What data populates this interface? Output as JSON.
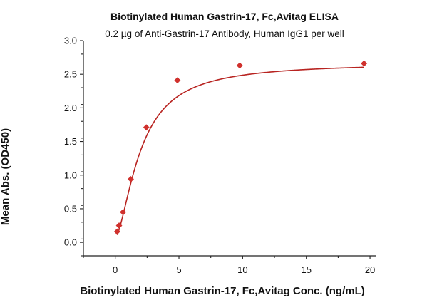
{
  "chart_data": {
    "type": "scatter",
    "title": "Biotinylated Human Gastrin-17, Fc,Avitag ELISA",
    "subtitle": "0.2 µg of Anti-Gastrin-17 Antibody, Human IgG1 per well",
    "xlabel": "Biotinylated Human Gastrin-17, Fc,Avitag Conc. (ng/mL)",
    "ylabel": "Mean Abs. (OD450)",
    "xlim": [
      -2.5,
      20.5
    ],
    "ylim": [
      -0.2,
      3.0
    ],
    "x_ticks": [
      0,
      5,
      10,
      15,
      20
    ],
    "y_ticks": [
      0.0,
      0.5,
      1.0,
      1.5,
      2.0,
      2.5,
      3.0
    ],
    "x_tick_labels": [
      "0",
      "5",
      "10",
      "15",
      "20"
    ],
    "y_tick_labels": [
      "0.0",
      "0.5",
      "1.0",
      "1.5",
      "2.0",
      "2.5",
      "3.0"
    ],
    "grid": false,
    "marker_color": "#d0312d",
    "curve_color": "#b82421",
    "series": [
      {
        "x": [
          0.15,
          0.3,
          0.61,
          1.22,
          2.44,
          4.88,
          9.77,
          19.53
        ],
        "y": [
          0.16,
          0.25,
          0.45,
          0.94,
          1.71,
          2.41,
          2.63,
          2.66
        ]
      }
    ],
    "fit": {
      "model": "4PL",
      "bottom": 0.07,
      "top": 2.67,
      "ec50": 2.0,
      "hill": 1.6
    }
  }
}
